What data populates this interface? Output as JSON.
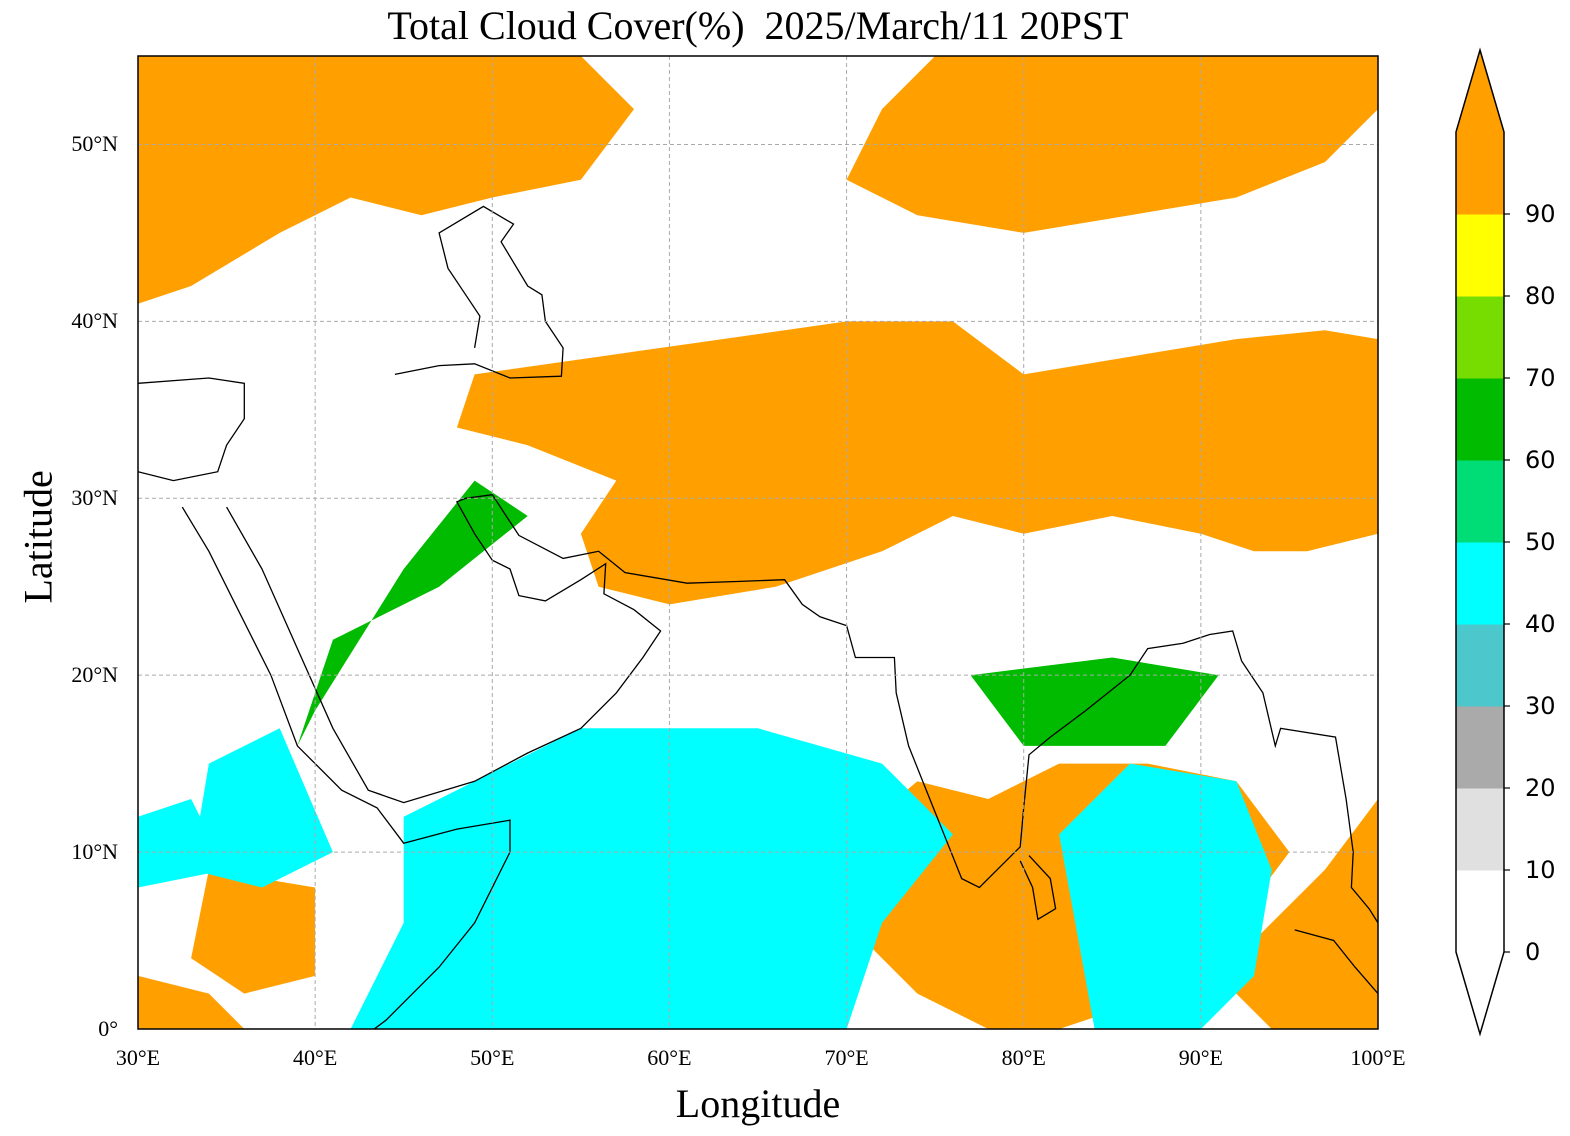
{
  "title": "Total Cloud Cover(%)  2025/March/11 20PST",
  "xlabel": "Longitude",
  "ylabel": "Latitude",
  "map": {
    "extent": {
      "lon": [
        30,
        100
      ],
      "lat": [
        0,
        55
      ]
    },
    "xticks": [
      {
        "value": 30,
        "label": "30°E"
      },
      {
        "value": 40,
        "label": "40°E"
      },
      {
        "value": 50,
        "label": "50°E"
      },
      {
        "value": 60,
        "label": "60°E"
      },
      {
        "value": 70,
        "label": "70°E"
      },
      {
        "value": 80,
        "label": "80°E"
      },
      {
        "value": 90,
        "label": "90°E"
      },
      {
        "value": 100,
        "label": "100°E"
      }
    ],
    "yticks": [
      {
        "value": 0,
        "label": "0°"
      },
      {
        "value": 10,
        "label": "10°N"
      },
      {
        "value": 20,
        "label": "20°N"
      },
      {
        "value": 30,
        "label": "30°N"
      },
      {
        "value": 40,
        "label": "40°N"
      },
      {
        "value": 50,
        "label": "50°N"
      }
    ],
    "grid": true,
    "field": "total cloud cover (%)",
    "regions": [
      {
        "class": 90,
        "polygon": [
          [
            30,
            55
          ],
          [
            55,
            55
          ],
          [
            58,
            52
          ],
          [
            55,
            48
          ],
          [
            50,
            47
          ],
          [
            46,
            46
          ],
          [
            42,
            47
          ],
          [
            38,
            45
          ],
          [
            33,
            42
          ],
          [
            30,
            41
          ]
        ]
      },
      {
        "class": 90,
        "polygon": [
          [
            75,
            55
          ],
          [
            100,
            55
          ],
          [
            100,
            52
          ],
          [
            97,
            49
          ],
          [
            92,
            47
          ],
          [
            86,
            46
          ],
          [
            80,
            45
          ],
          [
            74,
            46
          ],
          [
            70,
            48
          ],
          [
            72,
            52
          ]
        ]
      },
      {
        "class": 90,
        "polygon": [
          [
            49,
            37
          ],
          [
            56,
            38
          ],
          [
            63,
            39
          ],
          [
            70,
            40
          ],
          [
            76,
            40
          ],
          [
            80,
            37
          ],
          [
            86,
            38
          ],
          [
            92,
            39
          ],
          [
            97,
            39.5
          ],
          [
            100,
            39
          ],
          [
            100,
            28
          ],
          [
            96,
            27
          ],
          [
            93,
            27
          ],
          [
            90,
            28
          ],
          [
            85,
            29
          ],
          [
            80,
            28
          ],
          [
            76,
            29
          ],
          [
            72,
            27
          ],
          [
            66,
            25
          ],
          [
            60,
            24
          ],
          [
            56,
            25
          ],
          [
            55,
            28
          ],
          [
            57,
            31
          ],
          [
            52,
            33
          ],
          [
            48,
            34
          ]
        ]
      },
      {
        "class": 90,
        "polygon": [
          [
            74,
            14
          ],
          [
            78,
            13
          ],
          [
            82,
            15
          ],
          [
            87,
            15
          ],
          [
            92,
            14
          ],
          [
            95,
            10
          ],
          [
            92,
            6
          ],
          [
            88,
            3
          ],
          [
            85,
            1
          ],
          [
            82,
            0
          ],
          [
            78,
            0
          ],
          [
            74,
            2
          ],
          [
            71,
            5
          ],
          [
            68,
            9
          ]
        ]
      },
      {
        "class": 90,
        "polygon": [
          [
            93,
            5
          ],
          [
            97,
            9
          ],
          [
            100,
            13
          ],
          [
            100,
            0
          ],
          [
            94,
            0
          ],
          [
            92,
            2
          ]
        ]
      },
      {
        "class": 90,
        "polygon": [
          [
            34,
            9
          ],
          [
            40,
            8
          ],
          [
            40,
            3
          ],
          [
            36,
            2
          ],
          [
            33,
            4
          ]
        ]
      },
      {
        "class": 90,
        "polygon": [
          [
            30,
            3
          ],
          [
            34,
            2
          ],
          [
            36,
            0
          ],
          [
            30,
            0
          ]
        ]
      },
      {
        "class": 40,
        "polygon": [
          [
            45,
            12
          ],
          [
            55,
            17
          ],
          [
            65,
            17
          ],
          [
            72,
            15
          ],
          [
            76,
            11
          ],
          [
            72,
            6
          ],
          [
            70,
            0
          ],
          [
            42,
            0
          ],
          [
            45,
            6
          ]
        ]
      },
      {
        "class": 40,
        "polygon": [
          [
            82,
            11
          ],
          [
            86,
            15
          ],
          [
            92,
            14
          ],
          [
            94,
            9
          ],
          [
            93,
            3
          ],
          [
            90,
            0
          ],
          [
            84,
            0
          ]
        ]
      },
      {
        "class": 60,
        "polygon": [
          [
            41,
            22
          ],
          [
            47,
            25
          ],
          [
            52,
            29
          ],
          [
            49,
            31
          ],
          [
            45,
            26
          ],
          [
            40,
            18
          ],
          [
            39,
            16
          ]
        ]
      },
      {
        "class": 40,
        "polygon": [
          [
            34,
            15
          ],
          [
            38,
            17
          ],
          [
            41,
            10
          ],
          [
            37,
            8
          ],
          [
            33,
            9
          ]
        ]
      },
      {
        "class": 60,
        "polygon": [
          [
            77,
            20
          ],
          [
            85,
            21
          ],
          [
            91,
            20
          ],
          [
            88,
            16
          ],
          [
            80,
            16
          ]
        ]
      },
      {
        "class": 40,
        "polygon": [
          [
            30,
            12
          ],
          [
            33,
            13
          ],
          [
            35,
            9
          ],
          [
            30,
            8
          ]
        ]
      }
    ],
    "colorbar": {
      "colors": [
        "#ffffff",
        "#e0e0e0",
        "#aaaaaa",
        "#4cc8cc",
        "#00ffff",
        "#00dd77",
        "#00bb00",
        "#77dd00",
        "#ffff00",
        "#ff9f00"
      ],
      "ticks": [
        "0",
        "10",
        "20",
        "30",
        "40",
        "50",
        "60",
        "70",
        "80",
        "90"
      ],
      "extend": "both"
    }
  }
}
